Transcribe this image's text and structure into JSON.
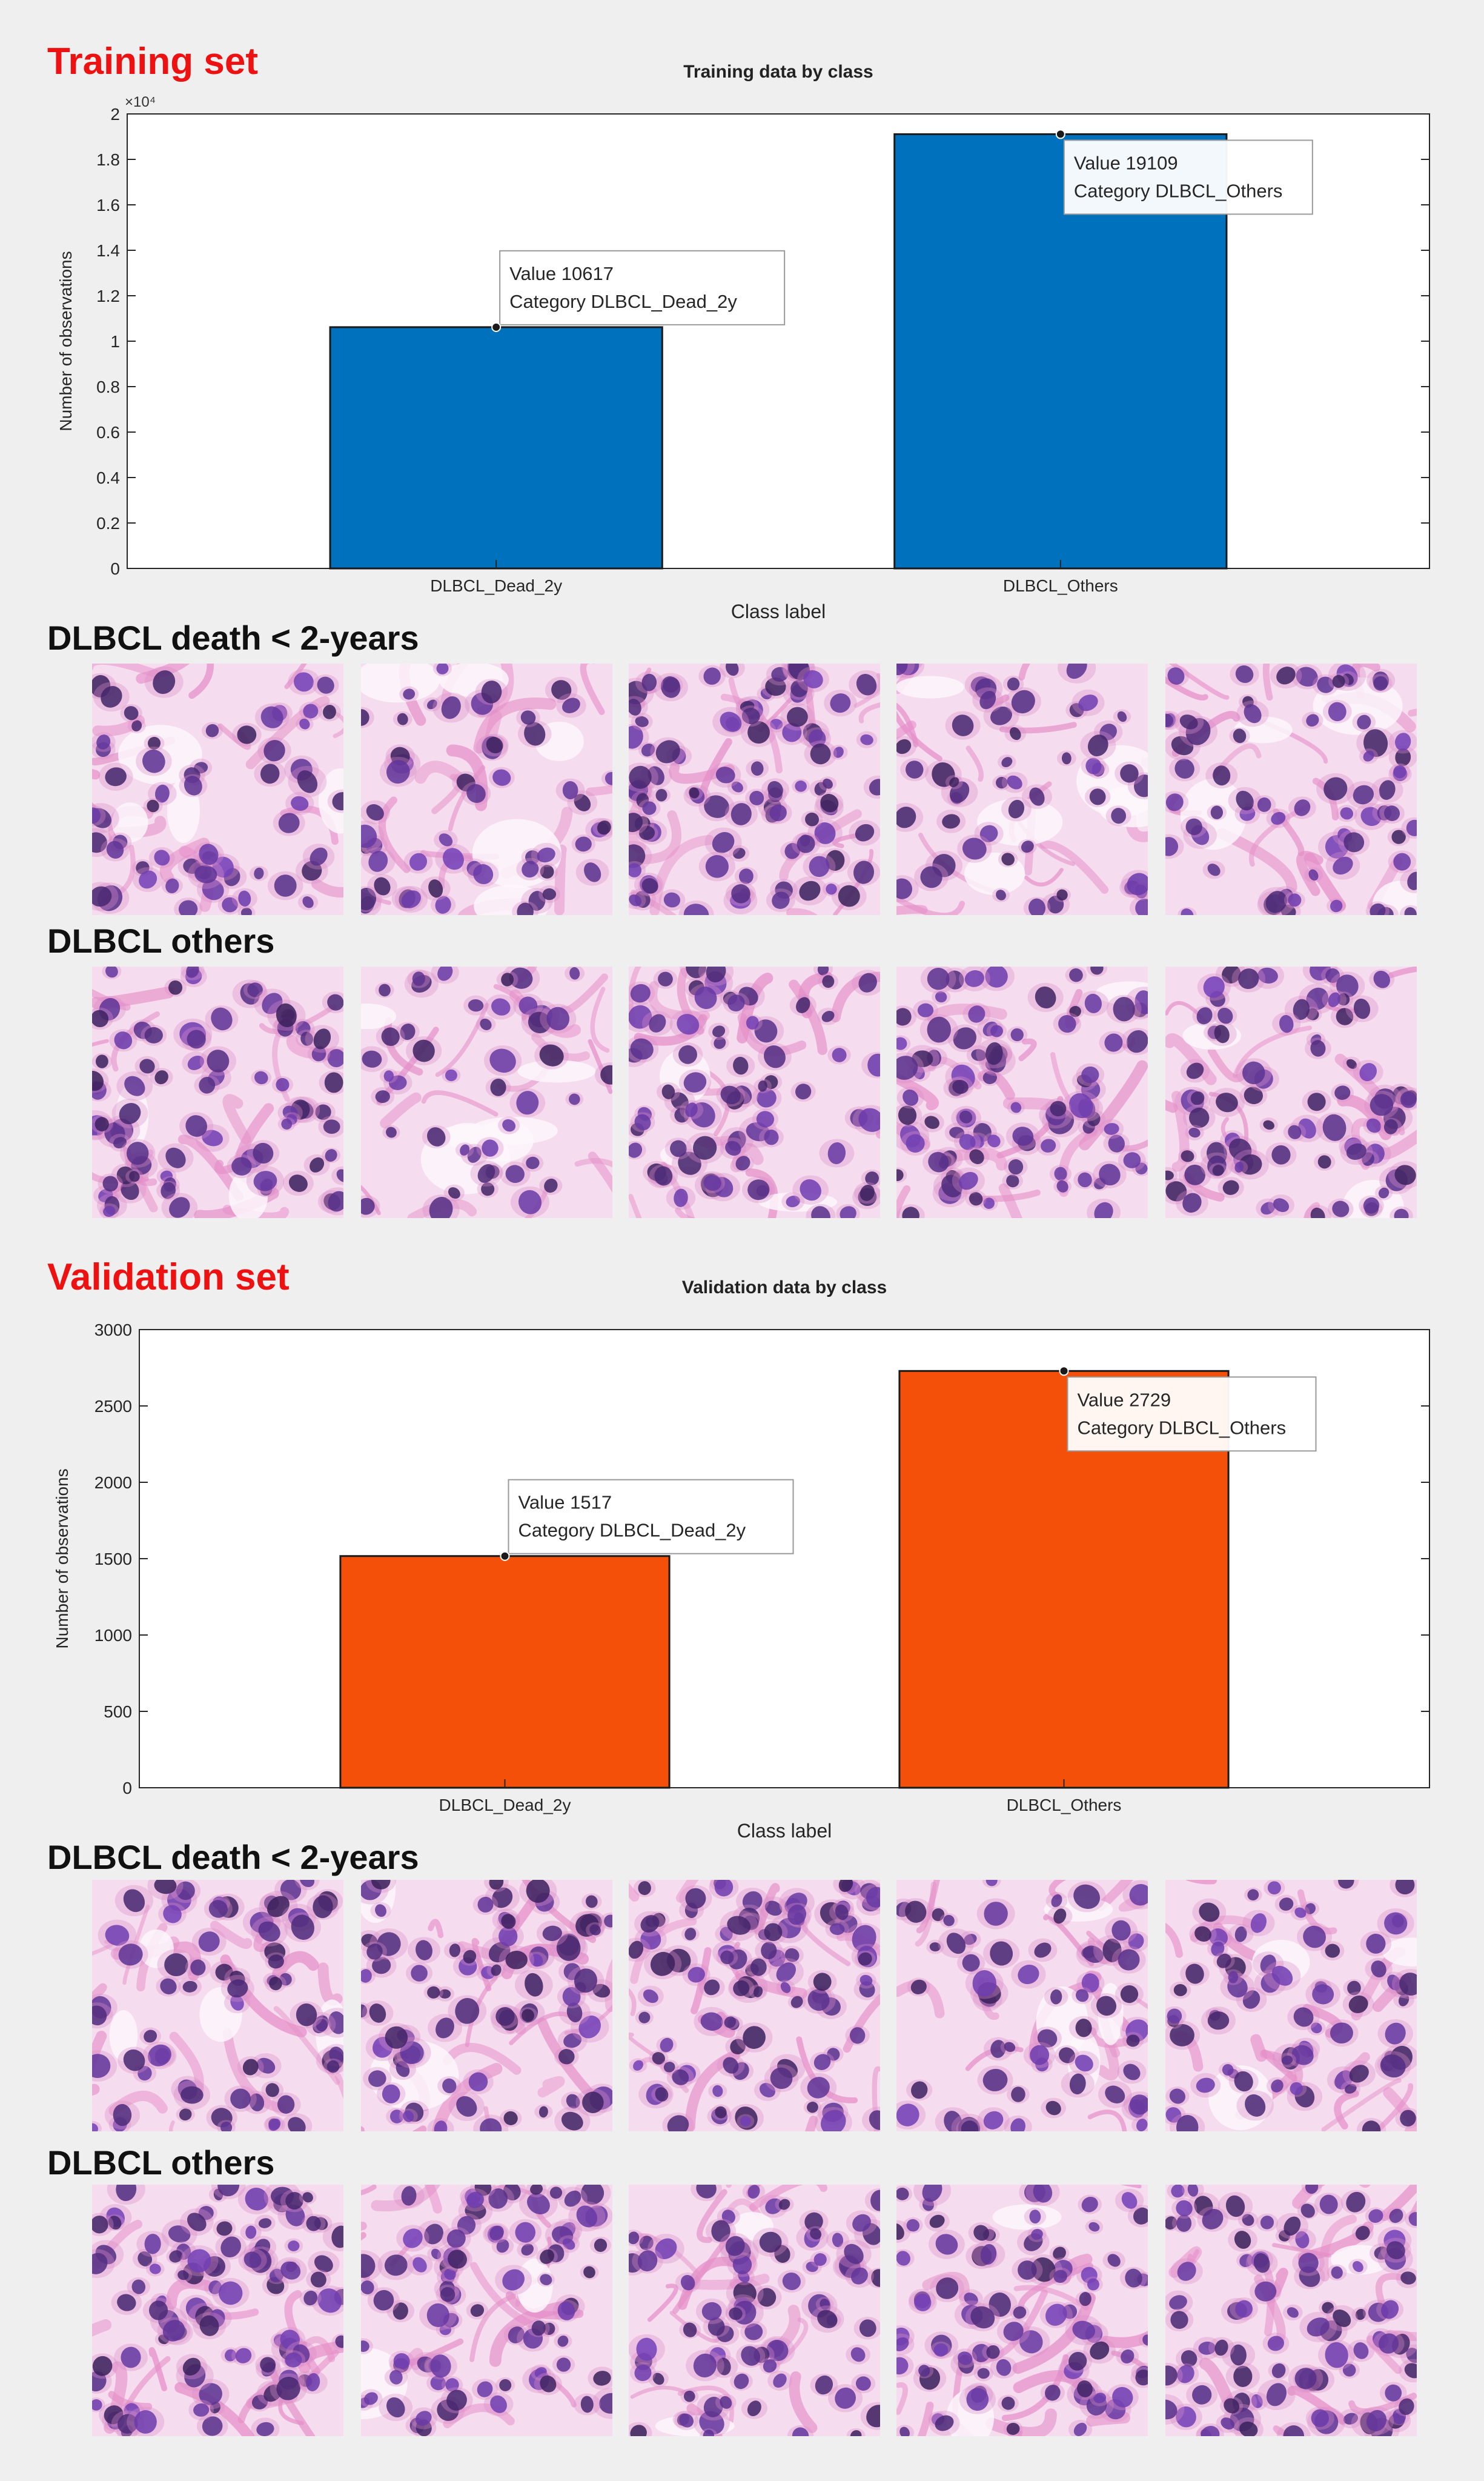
{
  "sections": [
    {
      "heading": "Training set",
      "groups": [
        {
          "label": "DLBCL death < 2-years"
        },
        {
          "label": "DLBCL others"
        }
      ]
    },
    {
      "heading": "Validation set",
      "groups": [
        {
          "label": "DLBCL death < 2-years"
        },
        {
          "label": "DLBCL others"
        }
      ]
    }
  ],
  "chart_data": [
    {
      "type": "bar",
      "title": "Training data by class",
      "xlabel": "Class label",
      "ylabel": "Number of observations",
      "categories": [
        "DLBCL_Dead_2y",
        "DLBCL_Others"
      ],
      "values": [
        10617,
        19109
      ],
      "ylim": [
        0,
        20000
      ],
      "yticks": [
        0,
        2000,
        4000,
        6000,
        8000,
        10000,
        12000,
        14000,
        16000,
        18000,
        20000
      ],
      "ytick_labels": [
        "0",
        "0.2",
        "0.4",
        "0.6",
        "0.8",
        "1",
        "1.2",
        "1.4",
        "1.6",
        "1.8",
        "2"
      ],
      "exponent_label": "×10⁴",
      "bar_color": "#0072bd",
      "grid": false,
      "datatips": [
        {
          "value_line": "Value 10617",
          "category_line": "Category DLBCL_Dead_2y"
        },
        {
          "value_line": "Value 19109",
          "category_line": "Category DLBCL_Others"
        }
      ]
    },
    {
      "type": "bar",
      "title": "Validation data by class",
      "xlabel": "Class label",
      "ylabel": "Number of observations",
      "categories": [
        "DLBCL_Dead_2y",
        "DLBCL_Others"
      ],
      "values": [
        1517,
        2729
      ],
      "ylim": [
        0,
        3000
      ],
      "yticks": [
        0,
        500,
        1000,
        1500,
        2000,
        2500,
        3000
      ],
      "ytick_labels": [
        "0",
        "500",
        "1000",
        "1500",
        "2000",
        "2500",
        "3000"
      ],
      "exponent_label": "",
      "bar_color": "#f5500a",
      "grid": false,
      "datatips": [
        {
          "value_line": "Value 1517",
          "category_line": "Category DLBCL_Dead_2y"
        },
        {
          "value_line": "Value 2729",
          "category_line": "Category DLBCL_Others"
        }
      ]
    }
  ],
  "tiles": {
    "kind": "H&E histology image patch",
    "tile_count_per_row": 5,
    "palette": {
      "background": "#f6dcef",
      "stroma": "#e58fc8",
      "nucleus": "#4b2a8a",
      "lumen": "#fdf7fb"
    }
  }
}
